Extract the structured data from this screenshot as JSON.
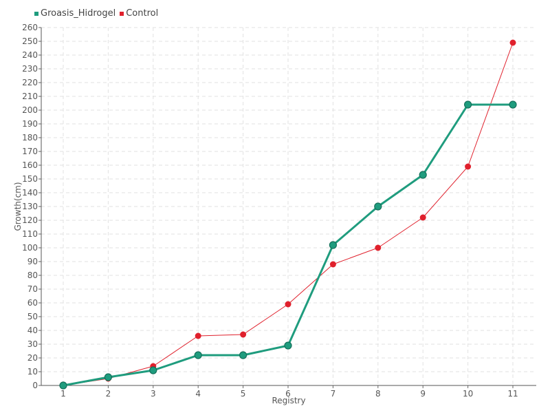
{
  "chart_data": {
    "type": "line",
    "title": "",
    "xlabel": "Registry",
    "ylabel": "Growth(cm)",
    "categories": [
      "1",
      "2",
      "3",
      "4",
      "5",
      "6",
      "7",
      "8",
      "9",
      "10",
      "11"
    ],
    "ylim": [
      0,
      260
    ],
    "ytick_step": 10,
    "grid": true,
    "legend_position": "top-left",
    "series": [
      {
        "name": "Groasis_Hidrogel",
        "color": "#1f9c7e",
        "values": [
          0,
          6,
          11,
          22,
          22,
          29,
          102,
          130,
          153,
          204,
          204
        ]
      },
      {
        "name": "Control",
        "color": "#e0202c",
        "values": [
          0,
          5,
          14,
          36,
          37,
          59,
          88,
          100,
          122,
          159,
          249
        ]
      }
    ]
  }
}
